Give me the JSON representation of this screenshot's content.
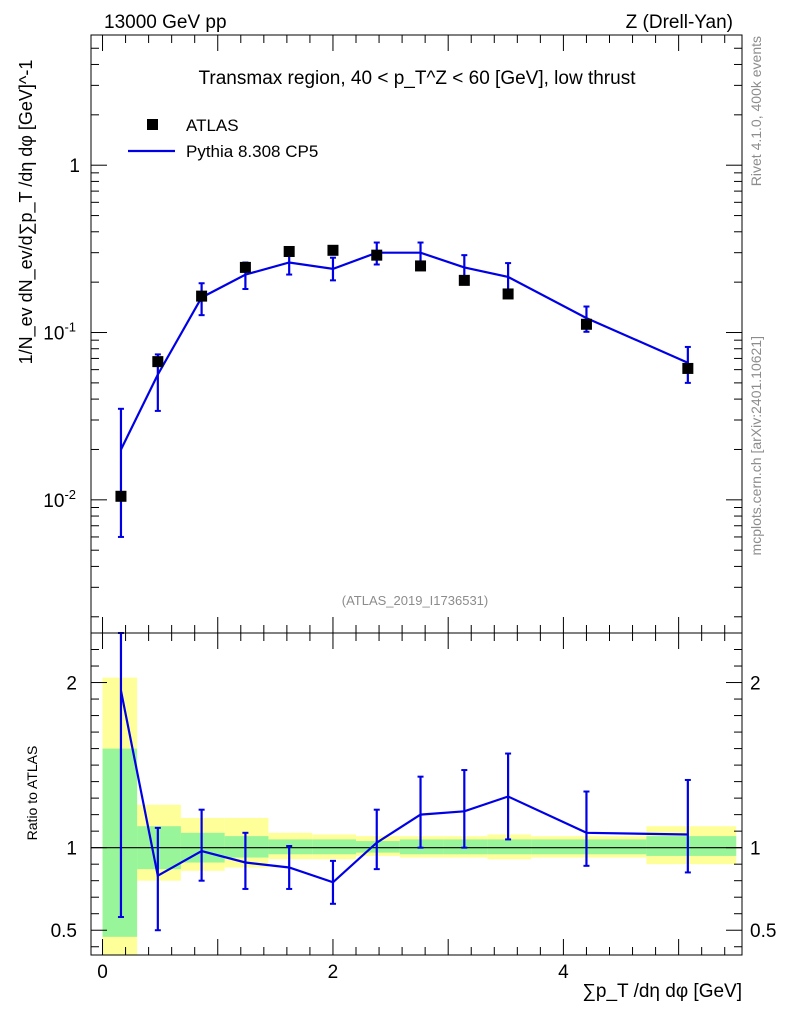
{
  "header": {
    "left": "13000 GeV pp",
    "right": "Z (Drell-Yan)"
  },
  "side_labels": {
    "rivet": "Rivet 4.1.0,  400k events",
    "mcplots": "mcplots.cern.ch [arXiv:2401.10621]"
  },
  "colors": {
    "data": "#000000",
    "mc": "#0000e6",
    "band_inner": "#99f599",
    "band_outer": "#ffff99"
  },
  "chart_data": [
    {
      "type": "scatter",
      "panel": "main",
      "title": "Transmax region, 40 < p_T^Z < 60 [GeV], low thrust",
      "ylabel": "1/N_ev dN_ev/d∑p_T /dη dφ [GeV]^-1",
      "yscale": "log",
      "xlim": [
        -0.1,
        5.55
      ],
      "ylim": [
        0.0016,
        6.0
      ],
      "y_ticks": [
        {
          "value": 1.0,
          "label": "1"
        },
        {
          "value": 0.1,
          "label": "10^-1"
        },
        {
          "value": 0.01,
          "label": "10^-2"
        }
      ],
      "watermark": "(ATLAS_2019_I1736531)",
      "legend": [
        {
          "label": "ATLAS",
          "style": "marker"
        },
        {
          "label": "Pythia 8.308 CP5",
          "style": "line"
        }
      ],
      "data_series": {
        "name": "ATLAS",
        "x": [
          0.16,
          0.48,
          0.86,
          1.24,
          1.62,
          2.0,
          2.38,
          2.76,
          3.14,
          3.52,
          4.2,
          5.08
        ],
        "y": [
          0.0105,
          0.067,
          0.165,
          0.245,
          0.305,
          0.31,
          0.29,
          0.25,
          0.205,
          0.17,
          0.112,
          0.061
        ]
      },
      "mc_series": {
        "name": "Pythia 8.308 CP5",
        "x": [
          0.16,
          0.48,
          0.86,
          1.24,
          1.62,
          2.0,
          2.38,
          2.76,
          3.14,
          3.52,
          4.2,
          5.08
        ],
        "y": [
          0.02,
          0.056,
          0.162,
          0.222,
          0.262,
          0.24,
          0.3,
          0.3,
          0.245,
          0.215,
          0.122,
          0.066
        ],
        "yerr_low": [
          0.014,
          0.022,
          0.035,
          0.04,
          0.04,
          0.035,
          0.045,
          0.045,
          0.04,
          0.04,
          0.021,
          0.016
        ],
        "yerr_high": [
          0.015,
          0.018,
          0.035,
          0.04,
          0.04,
          0.04,
          0.045,
          0.045,
          0.045,
          0.045,
          0.021,
          0.016
        ]
      }
    },
    {
      "type": "line",
      "panel": "ratio",
      "ylabel": "Ratio to ATLAS",
      "xlabel": "∑p_T /dη dφ [GeV]",
      "xlim": [
        -0.1,
        5.55
      ],
      "ylim": [
        0.35,
        2.3
      ],
      "x_ticks": [
        0,
        2,
        4
      ],
      "y_ticks": [
        {
          "value": 0.5,
          "label": "0.5"
        },
        {
          "value": 1,
          "label": "1"
        },
        {
          "value": 2,
          "label": "2"
        }
      ],
      "bins": [
        {
          "lo": 0.0,
          "hi": 0.3,
          "inner": [
            0.46,
            1.6
          ],
          "outer": [
            0.3,
            2.03
          ]
        },
        {
          "lo": 0.3,
          "hi": 0.68,
          "inner": [
            0.87,
            1.13
          ],
          "outer": [
            0.8,
            1.26
          ]
        },
        {
          "lo": 0.68,
          "hi": 1.06,
          "inner": [
            0.91,
            1.09
          ],
          "outer": [
            0.86,
            1.18
          ]
        },
        {
          "lo": 1.06,
          "hi": 1.44,
          "inner": [
            0.94,
            1.07
          ],
          "outer": [
            0.88,
            1.18
          ]
        },
        {
          "lo": 1.44,
          "hi": 1.82,
          "inner": [
            0.96,
            1.05
          ],
          "outer": [
            0.93,
            1.09
          ]
        },
        {
          "lo": 1.82,
          "hi": 2.2,
          "inner": [
            0.96,
            1.05
          ],
          "outer": [
            0.93,
            1.08
          ]
        },
        {
          "lo": 2.2,
          "hi": 2.58,
          "inner": [
            0.97,
            1.04
          ],
          "outer": [
            0.95,
            1.07
          ]
        },
        {
          "lo": 2.58,
          "hi": 2.96,
          "inner": [
            0.96,
            1.05
          ],
          "outer": [
            0.94,
            1.07
          ]
        },
        {
          "lo": 2.96,
          "hi": 3.34,
          "inner": [
            0.96,
            1.05
          ],
          "outer": [
            0.94,
            1.07
          ]
        },
        {
          "lo": 3.34,
          "hi": 3.72,
          "inner": [
            0.96,
            1.05
          ],
          "outer": [
            0.93,
            1.08
          ]
        },
        {
          "lo": 3.72,
          "hi": 4.72,
          "inner": [
            0.96,
            1.05
          ],
          "outer": [
            0.94,
            1.07
          ]
        },
        {
          "lo": 4.72,
          "hi": 5.5,
          "inner": [
            0.95,
            1.07
          ],
          "outer": [
            0.9,
            1.13
          ]
        }
      ],
      "mc_ratio": {
        "x": [
          0.16,
          0.48,
          0.86,
          1.24,
          1.62,
          2.0,
          2.38,
          2.76,
          3.14,
          3.52,
          4.2,
          5.08
        ],
        "y": [
          1.95,
          0.83,
          0.98,
          0.91,
          0.88,
          0.79,
          1.03,
          1.2,
          1.22,
          1.31,
          1.09,
          1.08
        ],
        "ylo": [
          0.58,
          0.5,
          0.8,
          0.75,
          0.75,
          0.66,
          0.87,
          1.0,
          1.0,
          1.05,
          0.89,
          0.85
        ],
        "yhi": [
          2.3,
          1.12,
          1.23,
          1.09,
          1.01,
          0.92,
          1.23,
          1.43,
          1.47,
          1.57,
          1.34,
          1.41
        ]
      }
    }
  ]
}
